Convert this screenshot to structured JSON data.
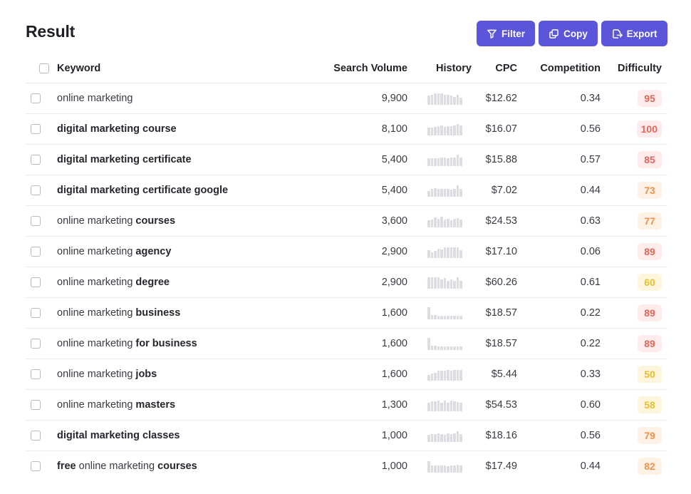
{
  "page": {
    "title": "Result"
  },
  "toolbar": {
    "filter_label": "Filter",
    "copy_label": "Copy",
    "export_label": "Export"
  },
  "table": {
    "columns": [
      "Keyword",
      "Search Volume",
      "History",
      "CPC",
      "Competition",
      "Difficulty"
    ],
    "rows": [
      {
        "segments": [
          {
            "text": "online marketing",
            "bold": false
          }
        ],
        "volume": "9,900",
        "cpc": "$12.62",
        "competition": "0.34",
        "difficulty": "95",
        "history": [
          0.7,
          0.8,
          0.9,
          0.9,
          0.9,
          0.8,
          0.75,
          0.7,
          0.6,
          0.75,
          0.55
        ]
      },
      {
        "segments": [
          {
            "text": "digital marketing course",
            "bold": true
          }
        ],
        "volume": "8,100",
        "cpc": "$16.07",
        "competition": "0.56",
        "difficulty": "100",
        "history": [
          0.6,
          0.6,
          0.65,
          0.7,
          0.75,
          0.65,
          0.7,
          0.7,
          0.75,
          0.9,
          0.8
        ]
      },
      {
        "segments": [
          {
            "text": "digital marketing certificate",
            "bold": true
          }
        ],
        "volume": "5,400",
        "cpc": "$15.88",
        "competition": "0.57",
        "difficulty": "85",
        "history": [
          0.6,
          0.6,
          0.6,
          0.6,
          0.65,
          0.65,
          0.6,
          0.65,
          0.65,
          0.9,
          0.65
        ]
      },
      {
        "segments": [
          {
            "text": "digital marketing certificate google",
            "bold": true
          }
        ],
        "volume": "5,400",
        "cpc": "$7.02",
        "competition": "0.44",
        "difficulty": "73",
        "history": [
          0.45,
          0.6,
          0.65,
          0.6,
          0.6,
          0.6,
          0.6,
          0.55,
          0.6,
          0.9,
          0.6
        ]
      },
      {
        "segments": [
          {
            "text": "online marketing ",
            "bold": false
          },
          {
            "text": "courses",
            "bold": true
          }
        ],
        "volume": "3,600",
        "cpc": "$24.53",
        "competition": "0.63",
        "difficulty": "77",
        "history": [
          0.55,
          0.6,
          0.75,
          0.65,
          0.85,
          0.6,
          0.65,
          0.55,
          0.65,
          0.7,
          0.6
        ]
      },
      {
        "segments": [
          {
            "text": "online marketing ",
            "bold": false
          },
          {
            "text": "agency",
            "bold": true
          }
        ],
        "volume": "2,900",
        "cpc": "$17.10",
        "competition": "0.06",
        "difficulty": "89",
        "history": [
          0.6,
          0.45,
          0.55,
          0.7,
          0.65,
          0.85,
          0.85,
          0.85,
          0.85,
          0.85,
          0.6
        ]
      },
      {
        "segments": [
          {
            "text": "online marketing ",
            "bold": false
          },
          {
            "text": "degree",
            "bold": true
          }
        ],
        "volume": "2,900",
        "cpc": "$60.26",
        "competition": "0.61",
        "difficulty": "60",
        "history": [
          0.9,
          0.9,
          0.9,
          0.9,
          0.7,
          0.85,
          0.6,
          0.7,
          0.6,
          0.9,
          0.6
        ]
      },
      {
        "segments": [
          {
            "text": "online marketing ",
            "bold": false
          },
          {
            "text": "business",
            "bold": true
          }
        ],
        "volume": "1,600",
        "cpc": "$18.57",
        "competition": "0.22",
        "difficulty": "89",
        "history": [
          0.95,
          0.35,
          0.35,
          0.3,
          0.3,
          0.25,
          0.3,
          0.3,
          0.25,
          0.3,
          0.25
        ]
      },
      {
        "segments": [
          {
            "text": "online marketing ",
            "bold": false
          },
          {
            "text": "for business",
            "bold": true
          }
        ],
        "volume": "1,600",
        "cpc": "$18.57",
        "competition": "0.22",
        "difficulty": "89",
        "history": [
          0.95,
          0.35,
          0.35,
          0.3,
          0.3,
          0.25,
          0.3,
          0.3,
          0.25,
          0.3,
          0.25
        ]
      },
      {
        "segments": [
          {
            "text": "online marketing ",
            "bold": false
          },
          {
            "text": "jobs",
            "bold": true
          }
        ],
        "volume": "1,600",
        "cpc": "$5.44",
        "competition": "0.33",
        "difficulty": "50",
        "history": [
          0.45,
          0.55,
          0.6,
          0.75,
          0.75,
          0.8,
          0.85,
          0.8,
          0.85,
          0.85,
          0.85
        ]
      },
      {
        "segments": [
          {
            "text": "online marketing ",
            "bold": false
          },
          {
            "text": "masters",
            "bold": true
          }
        ],
        "volume": "1,300",
        "cpc": "$54.53",
        "competition": "0.60",
        "difficulty": "58",
        "history": [
          0.65,
          0.75,
          0.75,
          0.85,
          0.65,
          0.85,
          0.65,
          0.85,
          0.75,
          0.7,
          0.65
        ]
      },
      {
        "segments": [
          {
            "text": "digital marketing classes",
            "bold": true
          }
        ],
        "volume": "1,000",
        "cpc": "$18.16",
        "competition": "0.56",
        "difficulty": "79",
        "history": [
          0.55,
          0.6,
          0.6,
          0.65,
          0.6,
          0.55,
          0.65,
          0.6,
          0.65,
          0.85,
          0.6
        ]
      },
      {
        "segments": [
          {
            "text": "free",
            "bold": true
          },
          {
            "text": " online marketing ",
            "bold": false
          },
          {
            "text": "courses",
            "bold": true
          }
        ],
        "volume": "1,000",
        "cpc": "$17.49",
        "competition": "0.44",
        "difficulty": "82",
        "history": [
          0.9,
          0.55,
          0.55,
          0.55,
          0.55,
          0.55,
          0.5,
          0.55,
          0.55,
          0.6,
          0.55
        ]
      }
    ]
  },
  "difficulty_colors": {
    "very_hard": {
      "bg": "#fdeceb",
      "fg": "#e2655a"
    },
    "hard": {
      "bg": "#fef1e6",
      "fg": "#ef9148"
    },
    "medium": {
      "bg": "#fdf6dc",
      "fg": "#e9be2c"
    }
  }
}
